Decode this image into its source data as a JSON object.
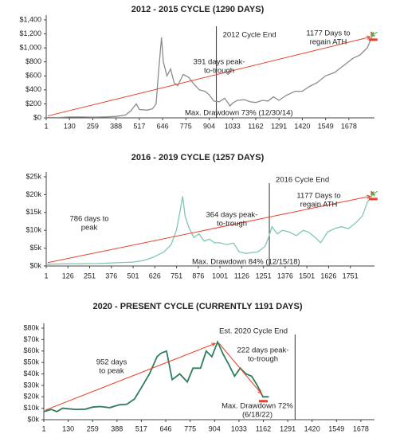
{
  "chart_data": [
    {
      "type": "line",
      "title": "2012 - 2015 CYCLE (1290 DAYS)",
      "xlim": [
        1,
        1820
      ],
      "xticks": [
        1,
        130,
        259,
        388,
        517,
        646,
        775,
        904,
        1033,
        1162,
        1291,
        1420,
        1549,
        1678
      ],
      "ylim": [
        0,
        1400
      ],
      "yticks": [
        {
          "value": 0,
          "label": "$0"
        },
        {
          "value": 200,
          "label": "$200"
        },
        {
          "value": 400,
          "label": "$400"
        },
        {
          "value": 600,
          "label": "$600"
        },
        {
          "value": 800,
          "label": "$800"
        },
        {
          "value": 1000,
          "label": "$1,000"
        },
        {
          "value": 1200,
          "label": "$1,200"
        },
        {
          "value": 1400,
          "label": "$1,400"
        }
      ],
      "x": [
        1,
        60,
        130,
        200,
        259,
        320,
        388,
        440,
        470,
        500,
        517,
        560,
        590,
        610,
        625,
        640,
        650,
        670,
        690,
        710,
        730,
        760,
        790,
        820,
        850,
        880,
        904,
        930,
        960,
        990,
        1020,
        1033,
        1060,
        1100,
        1130,
        1162,
        1200,
        1230,
        1260,
        1291,
        1330,
        1380,
        1420,
        1460,
        1500,
        1549,
        1600,
        1650,
        1700,
        1740,
        1780,
        1810
      ],
      "series": [
        {
          "color": "#8c8c8c",
          "values": [
            5,
            5,
            12,
            12,
            10,
            12,
            20,
            40,
            100,
            200,
            120,
            110,
            130,
            200,
            700,
            1150,
            800,
            600,
            700,
            500,
            460,
            620,
            580,
            480,
            400,
            380,
            330,
            240,
            230,
            280,
            170,
            210,
            250,
            260,
            230,
            220,
            250,
            240,
            300,
            250,
            320,
            380,
            380,
            450,
            500,
            600,
            650,
            750,
            850,
            900,
            1000,
            1180
          ]
        }
      ],
      "vline": {
        "x": 944,
        "label": "2012 Cycle End"
      },
      "annotations": [
        {
          "lines": [
            "391 days peak-",
            "to-trough"
          ]
        },
        {
          "lines": [
            "Max. Drawdown 73% (12/30/14)"
          ]
        },
        {
          "lines": [
            "1177 Days to",
            "regain ATH"
          ]
        }
      ]
    },
    {
      "type": "line",
      "title": "2016 - 2019 CYCLE (1257 DAYS)",
      "xlim": [
        1,
        1890
      ],
      "xticks": [
        1,
        126,
        251,
        376,
        501,
        626,
        751,
        876,
        1001,
        1126,
        1251,
        1376,
        1501,
        1626,
        1751
      ],
      "ylim": [
        0,
        25000
      ],
      "yticks": [
        {
          "value": 0,
          "label": "$0k"
        },
        {
          "value": 5000,
          "label": "$5k"
        },
        {
          "value": 10000,
          "label": "$10k"
        },
        {
          "value": 15000,
          "label": "$15k"
        },
        {
          "value": 20000,
          "label": "$20k"
        },
        {
          "value": 25000,
          "label": "$25k"
        }
      ],
      "x": [
        1,
        100,
        200,
        300,
        400,
        500,
        560,
        620,
        680,
        720,
        750,
        770,
        786,
        800,
        820,
        850,
        880,
        910,
        940,
        970,
        1000,
        1040,
        1080,
        1110,
        1150,
        1180,
        1220,
        1260,
        1280,
        1300,
        1330,
        1360,
        1400,
        1440,
        1480,
        1510,
        1550,
        1580,
        1620,
        1660,
        1700,
        1740,
        1780,
        1820,
        1850,
        1880
      ],
      "series": [
        {
          "color": "#7fc8ad",
          "values": [
            500,
            600,
            650,
            700,
            900,
            1100,
            1500,
            2500,
            4000,
            6000,
            10000,
            15000,
            19500,
            14000,
            11000,
            8000,
            9000,
            7000,
            7500,
            6500,
            6500,
            6000,
            6400,
            4000,
            3500,
            3700,
            4000,
            5500,
            8000,
            11000,
            9000,
            10000,
            9500,
            8500,
            10000,
            9500,
            8000,
            6500,
            9500,
            10500,
            11000,
            10500,
            12000,
            14000,
            18000,
            20000
          ]
        }
      ],
      "vline": {
        "x": 1285,
        "label": "2016 Cycle End"
      },
      "annotations": [
        {
          "lines": [
            "786 days to",
            "peak"
          ]
        },
        {
          "lines": [
            "364 days peak-",
            "to-trough"
          ]
        },
        {
          "lines": [
            "Max. Drawdown 84% (12/15/18)"
          ]
        },
        {
          "lines": [
            "1177 Days to",
            "regain ATH"
          ]
        }
      ]
    },
    {
      "type": "line",
      "title": "2020 - PRESENT CYCLE (CURRENTLY 1191 DAYS)",
      "xlim": [
        1,
        1750
      ],
      "xticks": [
        1,
        130,
        259,
        388,
        517,
        646,
        775,
        904,
        1033,
        1162,
        1291,
        1420,
        1549,
        1678
      ],
      "ylim": [
        0,
        80000
      ],
      "yticks": [
        {
          "value": 0,
          "label": "$0k"
        },
        {
          "value": 10000,
          "label": "$10k"
        },
        {
          "value": 20000,
          "label": "$20k"
        },
        {
          "value": 30000,
          "label": "$30k"
        },
        {
          "value": 40000,
          "label": "$40k"
        },
        {
          "value": 50000,
          "label": "$50k"
        },
        {
          "value": 60000,
          "label": "$60k"
        },
        {
          "value": 70000,
          "label": "$70k"
        },
        {
          "value": 80000,
          "label": "$80k"
        }
      ],
      "x": [
        1,
        40,
        70,
        100,
        130,
        170,
        220,
        259,
        300,
        350,
        400,
        440,
        480,
        517,
        560,
        600,
        620,
        650,
        680,
        720,
        760,
        790,
        830,
        860,
        890,
        920,
        950,
        980,
        1010,
        1040,
        1070,
        1100,
        1130,
        1160,
        1191
      ],
      "series": [
        {
          "color": "#2e7d5b",
          "values": [
            7000,
            9000,
            7000,
            10000,
            9500,
            9000,
            9200,
            11000,
            11500,
            10500,
            13000,
            13500,
            18000,
            28000,
            40000,
            55000,
            58000,
            60000,
            35000,
            40000,
            33000,
            45000,
            45000,
            60000,
            55000,
            68000,
            57000,
            48000,
            38000,
            45000,
            40000,
            38000,
            30000,
            20000,
            20000
          ]
        }
      ],
      "vline": {
        "x": 1330,
        "label": "Est. 2020 Cycle End"
      },
      "annotations": [
        {
          "lines": [
            "952 days",
            "to peak"
          ]
        },
        {
          "lines": [
            "222 days peak-",
            "to-trough"
          ]
        },
        {
          "lines": [
            "Max. Drawdown 72%",
            "(6/18/22)"
          ]
        }
      ]
    }
  ]
}
